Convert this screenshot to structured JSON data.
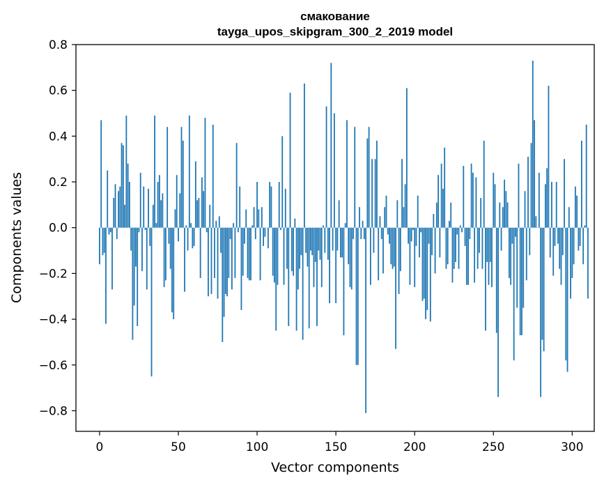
{
  "chart_data": {
    "type": "bar",
    "title_line1": "смакование",
    "title_line2": "tayga_upos_skipgram_300_2_2019 model",
    "xlabel": "Vector components",
    "ylabel": "Components values",
    "xlim": [
      -15,
      314
    ],
    "ylim": [
      -0.89,
      0.8
    ],
    "bar_color": "#1f77b4",
    "xticks": [
      0,
      50,
      100,
      150,
      200,
      250,
      300
    ],
    "xtick_labels": [
      "0",
      "50",
      "100",
      "150",
      "200",
      "250",
      "300"
    ],
    "yticks": [
      -0.8,
      -0.6,
      -0.4,
      -0.2,
      0.0,
      0.2,
      0.4,
      0.6,
      0.8
    ],
    "ytick_labels": [
      "−0.8",
      "−0.6",
      "−0.4",
      "−0.2",
      "0.0",
      "0.2",
      "0.4",
      "0.6",
      "0.8"
    ],
    "values": [
      -0.16,
      0.47,
      -0.12,
      -0.11,
      -0.42,
      0.25,
      -0.03,
      -0.02,
      -0.27,
      0.13,
      0.19,
      -0.05,
      0.16,
      0.18,
      0.37,
      0.36,
      0.1,
      0.49,
      0.28,
      0.2,
      -0.1,
      -0.49,
      -0.34,
      -0.17,
      -0.43,
      -0.02,
      0.24,
      -0.19,
      0.18,
      -0.01,
      -0.27,
      0.17,
      -0.08,
      -0.65,
      0.1,
      0.49,
      0.02,
      0.2,
      0.23,
      0.12,
      0.15,
      -0.26,
      -0.23,
      0.44,
      -0.07,
      -0.18,
      -0.37,
      -0.4,
      0.08,
      0.23,
      -0.06,
      0.15,
      0.44,
      0.38,
      -0.28,
      0.01,
      -0.1,
      0.49,
      0.02,
      -0.09,
      -0.08,
      0.29,
      0.12,
      0.13,
      -0.22,
      0.22,
      0.16,
      0.48,
      -0.02,
      -0.3,
      0.1,
      -0.29,
      0.45,
      -0.22,
      0.03,
      -0.31,
      0.05,
      -0.11,
      -0.5,
      -0.39,
      -0.29,
      -0.3,
      -0.22,
      -0.05,
      -0.27,
      0.02,
      -0.22,
      0.37,
      -0.02,
      0.18,
      -0.36,
      -0.21,
      -0.07,
      0.08,
      -0.22,
      -0.23,
      -0.23,
      0.01,
      0.09,
      -0.05,
      0.2,
      0.08,
      -0.23,
      0.09,
      -0.08,
      -0.04,
      0.0,
      -0.09,
      0.2,
      0.18,
      -0.21,
      -0.24,
      -0.45,
      -0.25,
      0.2,
      -0.01,
      0.4,
      -0.25,
      0.17,
      -0.18,
      -0.43,
      0.59,
      -0.19,
      -0.21,
      0.04,
      -0.45,
      -0.27,
      -0.18,
      -0.12,
      -0.49,
      0.63,
      -0.11,
      -0.17,
      -0.44,
      -0.1,
      -0.12,
      -0.26,
      -0.15,
      -0.43,
      -0.1,
      -0.14,
      -0.26,
      0.01,
      -0.11,
      0.53,
      -0.14,
      -0.33,
      0.72,
      -0.1,
      0.5,
      -0.33,
      -0.1,
      0.12,
      -0.13,
      -0.13,
      -0.47,
      0.02,
      0.47,
      -0.16,
      -0.26,
      -0.27,
      -0.05,
      0.44,
      -0.6,
      -0.6,
      0.09,
      -0.05,
      0.03,
      -0.05,
      -0.81,
      0.39,
      0.44,
      -0.25,
      0.3,
      -0.11,
      0.3,
      0.38,
      -0.23,
      0.05,
      -0.05,
      -0.2,
      0.09,
      0.14,
      -0.03,
      -0.07,
      -0.16,
      -0.18,
      -0.17,
      -0.53,
      0.12,
      -0.29,
      -0.19,
      0.3,
      0.09,
      0.19,
      0.61,
      -0.07,
      -0.25,
      -0.06,
      -0.01,
      -0.26,
      -0.08,
      0.14,
      -0.13,
      -0.02,
      -0.32,
      -0.31,
      -0.4,
      -0.36,
      -0.07,
      -0.41,
      -0.12,
      0.06,
      -0.2,
      0.11,
      0.23,
      -0.13,
      0.28,
      0.17,
      0.35,
      -0.18,
      -0.16,
      0.03,
      0.11,
      -0.24,
      -0.18,
      -0.15,
      -0.03,
      -0.18,
      0.01,
      -0.02,
      0.27,
      -0.08,
      -0.25,
      -0.25,
      -0.05,
      0.28,
      0.24,
      -0.24,
      0.22,
      -0.18,
      -0.11,
      0.13,
      -0.18,
      0.38,
      -0.45,
      -0.15,
      -0.25,
      -0.15,
      -0.26,
      0.24,
      0.19,
      -0.46,
      -0.74,
      0.11,
      -0.1,
      0.09,
      0.21,
      0.16,
      0.11,
      -0.22,
      -0.25,
      -0.07,
      -0.58,
      -0.04,
      -0.35,
      0.28,
      -0.47,
      -0.47,
      -0.35,
      0.16,
      -0.23,
      0.31,
      -0.12,
      0.37,
      0.73,
      0.47,
      0.05,
      0.0,
      0.24,
      -0.74,
      -0.49,
      -0.54,
      0.19,
      0.26,
      0.62,
      -0.13,
      0.2,
      -0.21,
      -0.08,
      0.2,
      -0.07,
      -0.18,
      -0.25,
      -0.12,
      0.3,
      -0.58,
      -0.63,
      0.09,
      -0.31,
      -0.22,
      -0.16,
      0.18,
      0.14,
      -0.1,
      -0.08,
      0.38,
      -0.16,
      0.01,
      0.45,
      -0.31
    ]
  }
}
